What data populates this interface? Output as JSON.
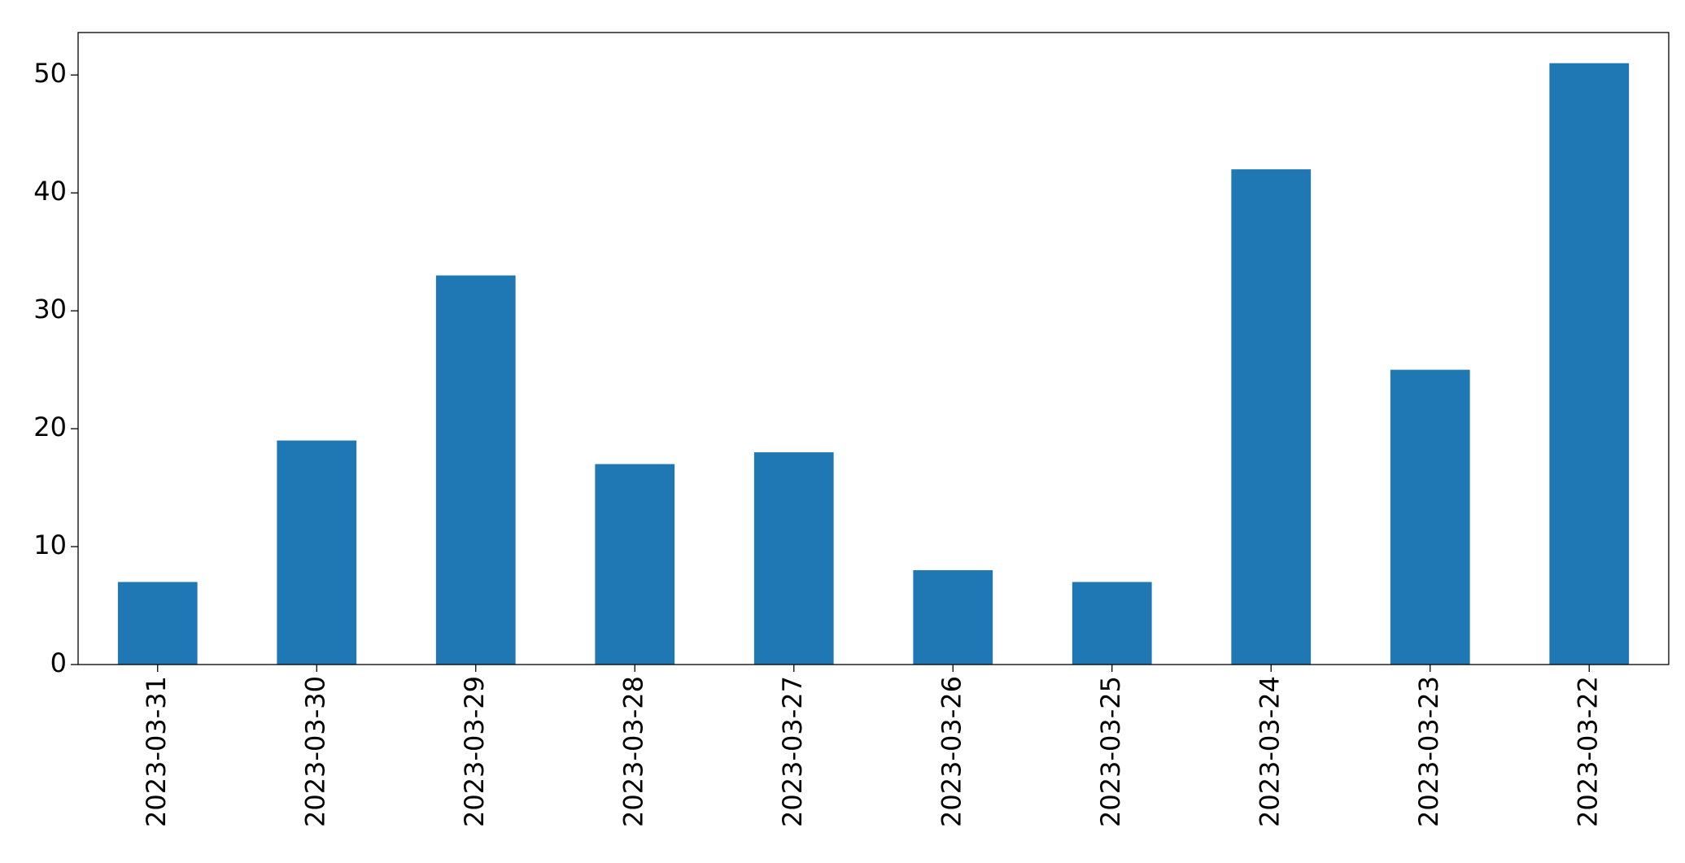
{
  "chart_data": {
    "type": "bar",
    "categories": [
      "2023-03-31",
      "2023-03-30",
      "2023-03-29",
      "2023-03-28",
      "2023-03-27",
      "2023-03-26",
      "2023-03-25",
      "2023-03-24",
      "2023-03-23",
      "2023-03-22"
    ],
    "values": [
      7,
      19,
      33,
      17,
      18,
      8,
      7,
      42,
      25,
      51
    ],
    "color": "#1f77b4",
    "ylim": [
      0,
      53.6
    ],
    "yticks": [
      0,
      10,
      20,
      30,
      40,
      50
    ],
    "grid": false
  }
}
